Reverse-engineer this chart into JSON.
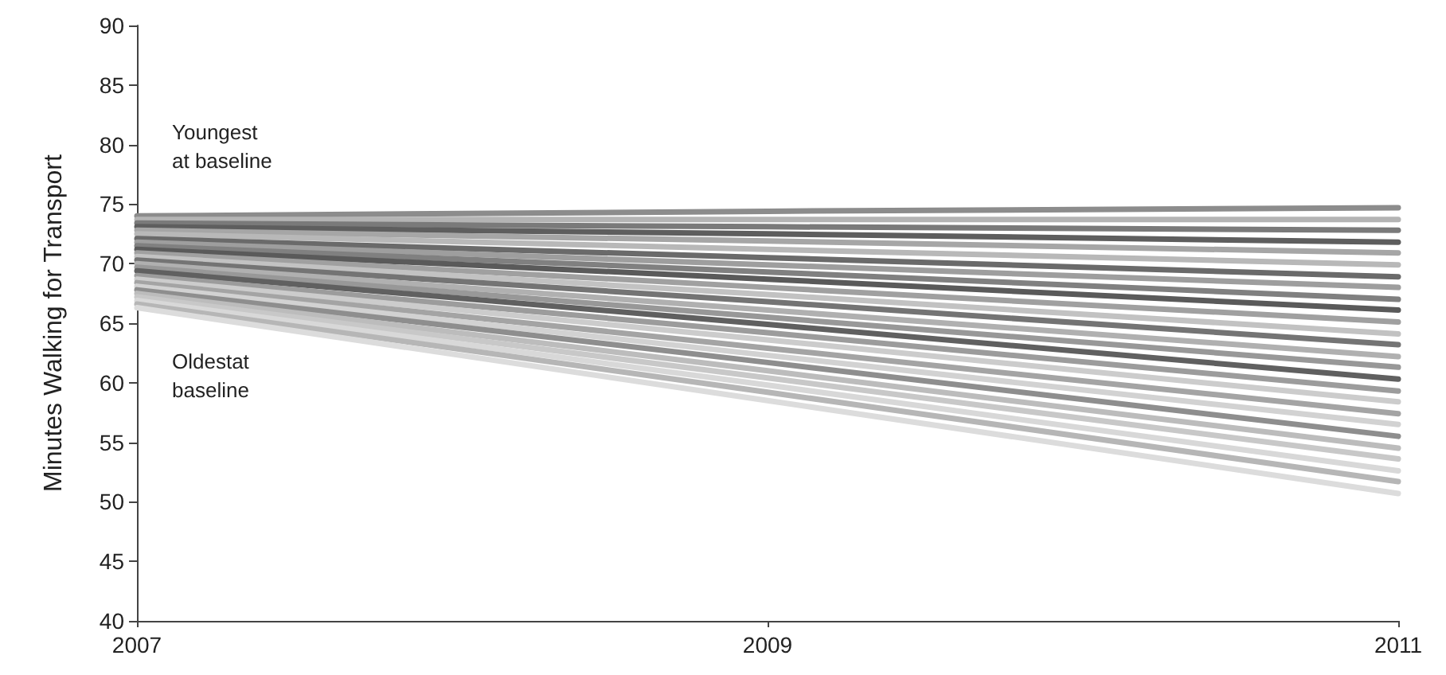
{
  "chart_data": {
    "type": "line",
    "ylabel": "Minutes Walking for Transport",
    "x": [
      2007,
      2009,
      2011
    ],
    "xlim": [
      2007,
      2011
    ],
    "xticks": [
      2007,
      2009,
      2011
    ],
    "ylim": [
      40,
      90
    ],
    "yticks": [
      40,
      45,
      50,
      55,
      60,
      65,
      70,
      75,
      80,
      85,
      90
    ],
    "grid": false,
    "marker": "none",
    "line_style": "solid",
    "annotations": [
      "Youngest\nat baseline",
      "Oldestat\nbaseline"
    ],
    "series": [
      {
        "color": "#8c8c8c",
        "values": [
          74.0,
          74.4,
          74.7
        ]
      },
      {
        "color": "#b4b4b4",
        "values": [
          73.7,
          73.7,
          73.7
        ]
      },
      {
        "color": "#7a7a7a",
        "values": [
          73.4,
          73.1,
          72.8
        ]
      },
      {
        "color": "#5e5e5e",
        "values": [
          73.1,
          72.5,
          71.8
        ]
      },
      {
        "color": "#a6a6a6",
        "values": [
          72.8,
          71.9,
          70.9
        ]
      },
      {
        "color": "#b8b8b8",
        "values": [
          72.5,
          71.2,
          69.9
        ]
      },
      {
        "color": "#6a6a6a",
        "values": [
          72.1,
          70.5,
          68.9
        ]
      },
      {
        "color": "#9e9e9e",
        "values": [
          71.8,
          69.9,
          68.0
        ]
      },
      {
        "color": "#808080",
        "values": [
          71.5,
          69.3,
          67.0
        ]
      },
      {
        "color": "#5a5a5a",
        "values": [
          71.2,
          68.7,
          66.1
        ]
      },
      {
        "color": "#a0a0a0",
        "values": [
          70.9,
          68.0,
          65.1
        ]
      },
      {
        "color": "#c2c2c2",
        "values": [
          70.6,
          67.4,
          64.1
        ]
      },
      {
        "color": "#747474",
        "values": [
          70.3,
          66.8,
          63.2
        ]
      },
      {
        "color": "#b0b0b0",
        "values": [
          70.0,
          66.1,
          62.2
        ]
      },
      {
        "color": "#989898",
        "values": [
          69.7,
          65.5,
          61.3
        ]
      },
      {
        "color": "#606060",
        "values": [
          69.4,
          64.9,
          60.3
        ]
      },
      {
        "color": "#9c9c9c",
        "values": [
          69.0,
          64.2,
          59.3
        ]
      },
      {
        "color": "#cccccc",
        "values": [
          68.7,
          63.6,
          58.4
        ]
      },
      {
        "color": "#a4a4a4",
        "values": [
          68.4,
          62.9,
          57.4
        ]
      },
      {
        "color": "#d2d2d2",
        "values": [
          68.1,
          62.3,
          56.5
        ]
      },
      {
        "color": "#8e8e8e",
        "values": [
          67.8,
          61.7,
          55.5
        ]
      },
      {
        "color": "#bcbcbc",
        "values": [
          67.5,
          61.0,
          54.5
        ]
      },
      {
        "color": "#c8c8c8",
        "values": [
          67.2,
          60.4,
          53.6
        ]
      },
      {
        "color": "#d8d8d8",
        "values": [
          66.9,
          59.8,
          52.6
        ]
      },
      {
        "color": "#b6b6b6",
        "values": [
          66.6,
          59.2,
          51.7
        ]
      },
      {
        "color": "#dcdcdc",
        "values": [
          66.3,
          58.5,
          50.7
        ]
      }
    ]
  }
}
